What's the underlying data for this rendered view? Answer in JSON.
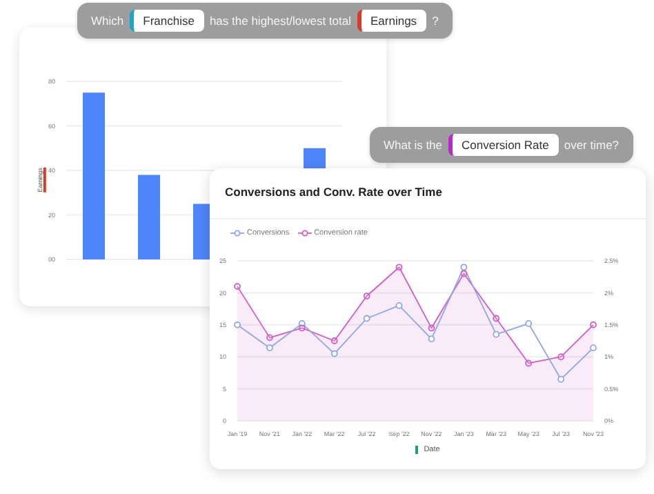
{
  "chart_data": [
    {
      "type": "bar",
      "ylabel": "Earnings",
      "categories": [
        null,
        null,
        null,
        null,
        null
      ],
      "values": [
        75,
        38,
        25,
        null,
        50
      ],
      "color": "#4f86f7",
      "ylim": [
        0,
        80
      ],
      "yticks": [
        {
          "value": 0,
          "label": "00"
        },
        20,
        40,
        60,
        80
      ],
      "grid": "y",
      "tick_labels": "y",
      "annotations": [
        "Which",
        "Franchise",
        "has the highest/lowest total",
        "Earnings",
        "?"
      ]
    },
    {
      "type": "line",
      "title": "Conversions and Conv. Rate over Time",
      "xlabel": "Date",
      "categories": [
        "Jan '19",
        "Nov '21",
        "Jan '22",
        "Mar '22",
        "Jul '22",
        "Sep '22",
        "Nov '22",
        "Jan '23",
        "Mar '23",
        "May '23",
        "Jul '23",
        "Nov '23"
      ],
      "series": [
        {
          "name": "Conversions",
          "color": "#8fa6e8",
          "values": [
            15,
            11.4,
            15.2,
            10.5,
            16,
            18,
            12.8,
            24,
            13.5,
            15.2,
            6.5,
            11.4
          ]
        },
        {
          "name": "Conversion rate",
          "type": "area",
          "axis": "y2",
          "color": "#d05cc8",
          "values": [
            2.1,
            1.3,
            1.45,
            1.25,
            1.95,
            2.4,
            1.45,
            2.3,
            1.6,
            0.9,
            1.0,
            1.5
          ]
        }
      ],
      "ylim": [
        0,
        25
      ],
      "yticks": [
        0,
        5,
        10,
        15,
        20,
        25
      ],
      "y2lim": [
        0,
        2.5
      ],
      "y2ticks": [
        {
          "value": 0,
          "label": "0%"
        },
        {
          "value": 0.5,
          "label": "0.5%"
        },
        {
          "value": 1,
          "label": "1%"
        },
        {
          "value": 1.5,
          "label": "1.5%"
        },
        {
          "value": 2,
          "label": "2%"
        },
        {
          "value": 2.5,
          "label": "2.5%"
        }
      ],
      "grid": "y",
      "legend": "top left",
      "marker": "circle",
      "line_style": "solid",
      "annotations": [
        "What is the",
        "Conversion Rate",
        "over time?"
      ]
    }
  ]
}
